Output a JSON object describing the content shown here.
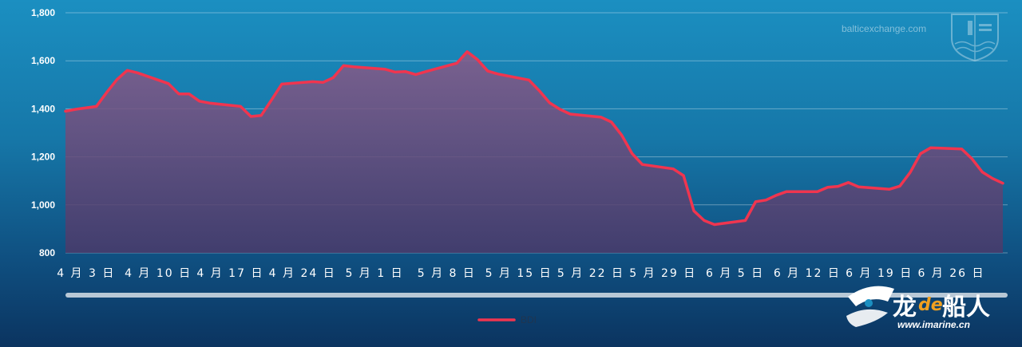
{
  "watermark": {
    "text": "balticexchange.com",
    "icon": "baltic-exchange-crest-icon"
  },
  "logo": {
    "text_left": "龙",
    "text_mid": "de",
    "text_right": "船人",
    "url": "www.imarine.cn",
    "icon": "ship-wave-icon"
  },
  "colors": {
    "line": "#f0354f",
    "area_top": "#8a5a88",
    "area_bottom": "#4a3a6a",
    "grid": "rgba(255,255,255,0.35)",
    "scrollbar": "#b8c8d6"
  },
  "chart_data": {
    "type": "area",
    "title": "",
    "xlabel": "",
    "ylabel": "",
    "ylim": [
      800,
      1800
    ],
    "yticks": [
      "800",
      "1,000",
      "1,200",
      "1,400",
      "1,600",
      "1,800"
    ],
    "ytick_values": [
      800,
      1000,
      1200,
      1400,
      1600,
      1800
    ],
    "xticks": [
      "4 月 3 日",
      "4 月 10 日",
      "4 月 17 日",
      "4 月 24 日",
      "5 月 1 日",
      "5 月 8 日",
      "5 月 15 日",
      "5 月 22 日",
      "5 月 29 日",
      "6 月 5 日",
      "6 月 12 日",
      "6 月 19 日",
      "6 月 26 日"
    ],
    "xtick_days": [
      2,
      9,
      16,
      23,
      30,
      37,
      44,
      51,
      58,
      65,
      72,
      79,
      86
    ],
    "x_range_days": [
      0,
      91
    ],
    "grid": true,
    "legend_position": "bottom-center",
    "series": [
      {
        "name": "BDI",
        "days": [
          0,
          1,
          3,
          4,
          5,
          6,
          7,
          10,
          11,
          12,
          13,
          14,
          17,
          18,
          19,
          20,
          21,
          24,
          25,
          26,
          27,
          28,
          31,
          32,
          33,
          34,
          35,
          38,
          39,
          40,
          41,
          42,
          45,
          46,
          47,
          48,
          49,
          52,
          53,
          54,
          55,
          56,
          59,
          60,
          61,
          62,
          63,
          66,
          67,
          68,
          69,
          70,
          73,
          74,
          75,
          76,
          77,
          80,
          81,
          82,
          83,
          84,
          87,
          88,
          89,
          90,
          91
        ],
        "values": [
          1390,
          1398,
          1410,
          1468,
          1522,
          1560,
          1550,
          1505,
          1462,
          1462,
          1432,
          1424,
          1410,
          1368,
          1372,
          1437,
          1503,
          1513,
          1510,
          1530,
          1580,
          1575,
          1565,
          1553,
          1555,
          1543,
          1555,
          1590,
          1638,
          1605,
          1557,
          1545,
          1520,
          1475,
          1425,
          1398,
          1378,
          1365,
          1345,
          1290,
          1214,
          1168,
          1150,
          1122,
          975,
          935,
          918,
          935,
          1013,
          1020,
          1040,
          1055,
          1055,
          1073,
          1077,
          1093,
          1075,
          1065,
          1078,
          1135,
          1213,
          1238,
          1233,
          1192,
          1137,
          1110,
          1090
        ]
      }
    ]
  }
}
